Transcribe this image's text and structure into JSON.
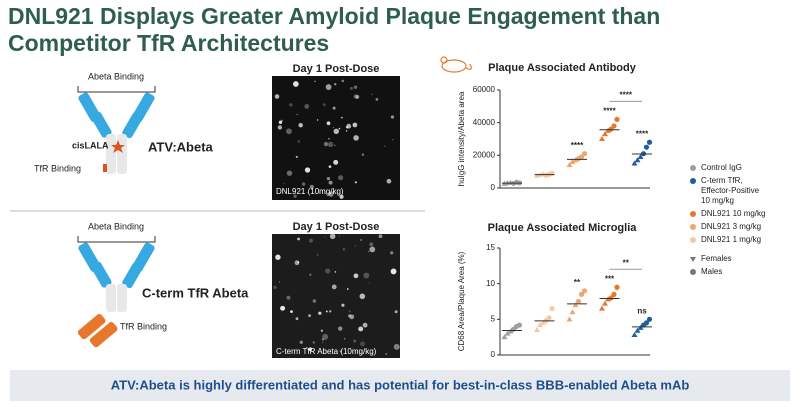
{
  "header": {
    "title_line1": "DNL921 Displays Greater Amyloid Plaque Engagement than",
    "title_line2": "Competitor TfR Architectures"
  },
  "panels": [
    {
      "binding_label": "Abeta Binding",
      "mutation_label": "cisLALA",
      "tfr_label": "TfR Binding",
      "name": "ATV:Abeta",
      "image_title": "Day 1 Post-Dose",
      "image_caption": "DNL921 (10mg/kg)"
    },
    {
      "binding_label": "Abeta Binding",
      "tfr_label": "TfR Binding",
      "name": "C-term TfR Abeta",
      "image_title": "Day 1 Post-Dose",
      "image_caption": "C-term TfR Abeta (10mg/kg)"
    }
  ],
  "chart_data": [
    {
      "type": "scatter",
      "title": "Plaque Associated Antibody",
      "ylabel": "huIgG intensity/Abeta area",
      "ylim": [
        0,
        60000
      ],
      "yticks": [
        0,
        20000,
        40000,
        60000
      ],
      "series": [
        {
          "name": "Control IgG",
          "color": "#9e9e9e",
          "values": [
            2500,
            3000,
            3200,
            2800,
            3500,
            3100
          ]
        },
        {
          "name": "DNL921 1 mg/kg",
          "color": "#f6c9a6",
          "values": [
            7500,
            8000,
            8500,
            7800,
            8200,
            9000
          ]
        },
        {
          "name": "DNL921 3 mg/kg",
          "color": "#f0a56c",
          "values": [
            14000,
            16000,
            17000,
            18000,
            19000,
            21000
          ]
        },
        {
          "name": "DNL921 10 mg/kg",
          "color": "#e8772e",
          "values": [
            30000,
            33000,
            35000,
            36000,
            38000,
            42000
          ]
        },
        {
          "name": "C-term TfR, Effector-Positive 10 mg/kg",
          "color": "#1f5e9e",
          "values": [
            15000,
            17000,
            19000,
            21000,
            25000,
            28000
          ]
        }
      ],
      "annotations": [
        {
          "text": "****",
          "series": 2
        },
        {
          "text": "****",
          "series": 3
        },
        {
          "text": "****",
          "series": 4
        }
      ],
      "bracket": {
        "text": "****",
        "from": 3,
        "to": 4
      }
    },
    {
      "type": "scatter",
      "title": "Plaque Associated Microglia",
      "ylabel": "CD68 Area/Plaque Area (%)",
      "ylim": [
        0,
        15
      ],
      "yticks": [
        0,
        5,
        10,
        15
      ],
      "series": [
        {
          "color": "#9e9e9e",
          "values": [
            2.5,
            3,
            3.3,
            3.6,
            4,
            4.2
          ]
        },
        {
          "color": "#f6c9a6",
          "values": [
            3.5,
            4.2,
            4.5,
            4.8,
            5.2,
            6.5
          ]
        },
        {
          "color": "#f0a56c",
          "values": [
            5,
            6,
            7,
            7.5,
            8.5,
            9
          ]
        },
        {
          "color": "#e8772e",
          "values": [
            6.5,
            7.2,
            7.8,
            8,
            8.5,
            9.5
          ]
        },
        {
          "color": "#1f5e9e",
          "values": [
            2.8,
            3.4,
            3.8,
            4.2,
            4.5,
            5
          ]
        }
      ],
      "annotations": [
        {
          "text": "**",
          "series": 2
        },
        {
          "text": "***",
          "series": 3
        },
        {
          "text": "ns",
          "series": 4
        }
      ],
      "bracket": {
        "text": "**",
        "from": 3,
        "to": 4
      }
    }
  ],
  "marker_legend": [
    "Females",
    "Males"
  ],
  "footer": "ATV:Abeta is highly differentiated and has potential for best-in-class BBB-enabled Abeta mAb"
}
